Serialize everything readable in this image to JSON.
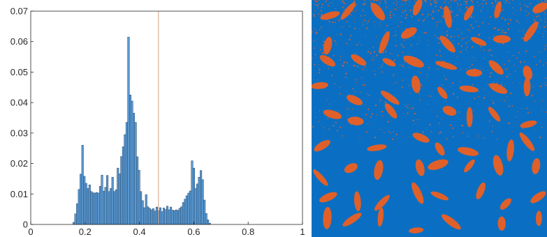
{
  "chart_data": [
    {
      "type": "bar",
      "subtype": "histogram",
      "title": "",
      "xlabel": "",
      "ylabel": "",
      "xlim": [
        0,
        1
      ],
      "ylim": [
        0,
        0.07
      ],
      "xticks": [
        "0",
        "0.2",
        "0.4",
        "0.6",
        "0.8",
        "1"
      ],
      "yticks": [
        "0",
        "0.01",
        "0.02",
        "0.03",
        "0.04",
        "0.05",
        "0.06",
        "0.07"
      ],
      "grid": false,
      "bin_start": 0.155,
      "bin_width": 0.0065,
      "values": [
        0.0007,
        0.0035,
        0.0068,
        0.0115,
        0.0165,
        0.026,
        0.0158,
        0.0135,
        0.0118,
        0.013,
        0.0108,
        0.0104,
        0.0103,
        0.0105,
        0.0103,
        0.0125,
        0.0162,
        0.0109,
        0.0122,
        0.0161,
        0.0108,
        0.0118,
        0.0155,
        0.0108,
        0.0114,
        0.0185,
        0.0166,
        0.0223,
        0.0255,
        0.0295,
        0.0335,
        0.0615,
        0.0425,
        0.0405,
        0.0365,
        0.0335,
        0.0222,
        0.0178,
        0.0108,
        0.0078,
        0.0055,
        0.0098,
        0.0058,
        0.0053,
        0.0048,
        0.0052,
        0.0044,
        0.0057,
        0.0045,
        0.0055,
        0.0042,
        0.0054,
        0.0049,
        0.006,
        0.0048,
        0.0057,
        0.0047,
        0.0045,
        0.0048,
        0.0046,
        0.0053,
        0.0058,
        0.0072,
        0.0083,
        0.0094,
        0.0103,
        0.011,
        0.0209,
        0.0185,
        0.0118,
        0.0133,
        0.0155,
        0.0177,
        0.0147,
        0.008,
        0.0036,
        0.0015,
        0.0004
      ],
      "threshold": 0.47,
      "colors": {
        "bar_fill": "#5b9bd5",
        "bar_edge": "#1f3f5f",
        "threshold_line": "#d9a080"
      }
    },
    {
      "type": "image",
      "description_kind": "binary segmentation map",
      "colors": {
        "background": "#0a6fc2",
        "foreground": "#e0602a"
      }
    }
  ]
}
